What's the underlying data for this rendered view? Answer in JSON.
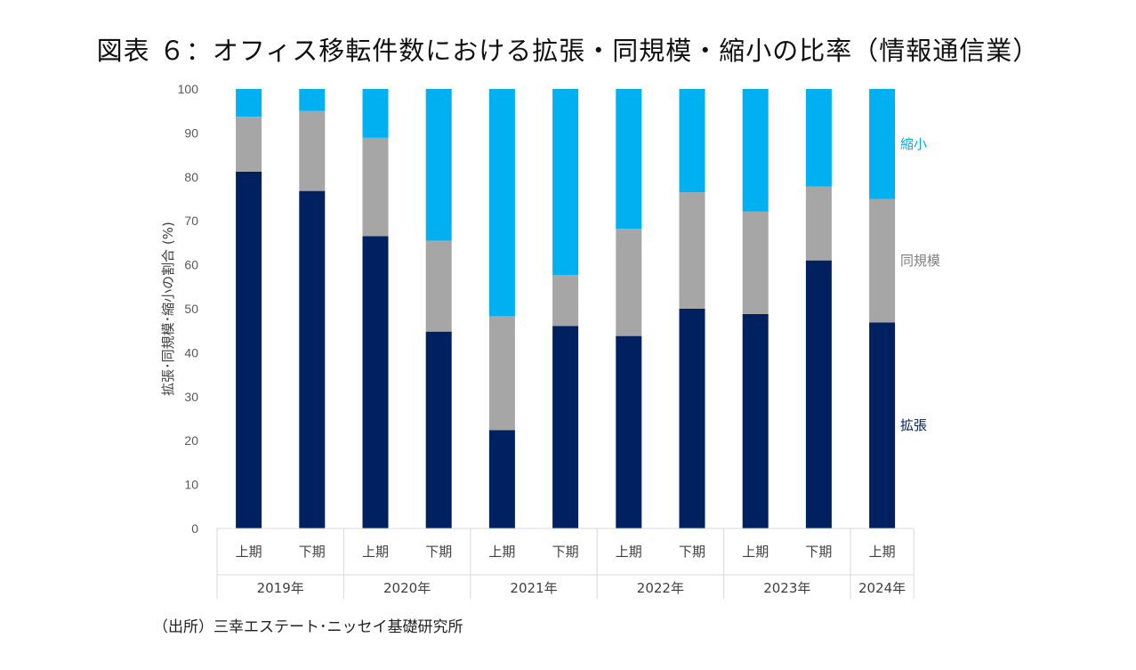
{
  "chart_data": {
    "type": "stacked-bar",
    "title": "図表 ６：オフィス移転件数における拡張・同規模・縮小の比率（情報通信業）",
    "ylabel": "拡張･同規模･縮小の割合 (%)",
    "ylim": [
      0,
      100
    ],
    "yticks": [
      0,
      10,
      20,
      30,
      40,
      50,
      60,
      70,
      80,
      90,
      100
    ],
    "grid": false,
    "categories": [
      "上期",
      "下期",
      "上期",
      "下期",
      "上期",
      "下期",
      "上期",
      "下期",
      "上期",
      "下期",
      "上期"
    ],
    "groups": [
      {
        "label": "2019年",
        "count": 2
      },
      {
        "label": "2020年",
        "count": 2
      },
      {
        "label": "2021年",
        "count": 2
      },
      {
        "label": "2022年",
        "count": 2
      },
      {
        "label": "2023年",
        "count": 2
      },
      {
        "label": "2024年",
        "count": 1
      }
    ],
    "series": [
      {
        "name": "拡張",
        "color": "#002060",
        "values": [
          81.2,
          76.8,
          66.5,
          44.8,
          22.4,
          46.1,
          43.8,
          50.0,
          48.8,
          61.0,
          46.9
        ]
      },
      {
        "name": "同規模",
        "color": "#a6a6a6",
        "values": [
          12.5,
          18.2,
          22.4,
          20.7,
          25.9,
          11.6,
          24.4,
          26.5,
          23.3,
          16.8,
          28.1
        ]
      },
      {
        "name": "縮小",
        "color": "#00b0f0",
        "values": [
          6.3,
          5.0,
          11.1,
          34.5,
          51.7,
          42.3,
          31.8,
          23.5,
          27.9,
          22.2,
          25.0
        ]
      }
    ],
    "legend": "right (inline labels)"
  },
  "source": "（出所）三幸エステート･ニッセイ基礎研究所"
}
